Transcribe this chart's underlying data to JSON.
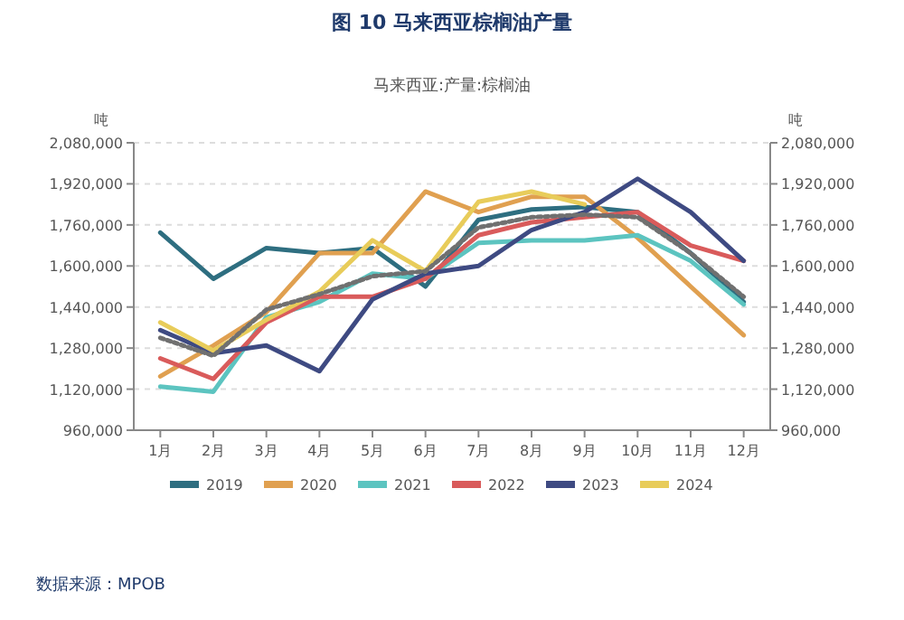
{
  "chart_data": {
    "type": "line",
    "title": "图 10 马来西亚棕榈油产量",
    "subtitle": "马来西亚:产量:棕榈油",
    "ylabel": "吨",
    "y2label": "吨",
    "categories": [
      "1月",
      "2月",
      "3月",
      "4月",
      "5月",
      "6月",
      "7月",
      "8月",
      "9月",
      "10月",
      "11月",
      "12月"
    ],
    "series": [
      {
        "name": "2019",
        "color": "#2e6e80",
        "values": [
          1730000,
          1550000,
          1670000,
          1650000,
          1670000,
          1520000,
          1780000,
          1820000,
          1830000,
          1810000,
          1650000,
          1460000
        ]
      },
      {
        "name": "2020",
        "color": "#e0a050",
        "values": [
          1170000,
          1290000,
          1420000,
          1650000,
          1650000,
          1890000,
          1810000,
          1870000,
          1870000,
          1710000,
          1520000,
          1330000
        ]
      },
      {
        "name": "2021",
        "color": "#5cc4c0",
        "values": [
          1130000,
          1110000,
          1400000,
          1460000,
          1570000,
          1550000,
          1690000,
          1700000,
          1700000,
          1720000,
          1620000,
          1450000
        ]
      },
      {
        "name": "2022",
        "color": "#d95b5b",
        "values": [
          1240000,
          1160000,
          1380000,
          1480000,
          1480000,
          1550000,
          1720000,
          1770000,
          1790000,
          1810000,
          1680000,
          1620000
        ]
      },
      {
        "name": "2023",
        "color": "#3e4a82",
        "values": [
          1350000,
          1260000,
          1290000,
          1190000,
          1470000,
          1570000,
          1600000,
          1740000,
          1810000,
          1940000,
          1810000,
          1620000
        ]
      },
      {
        "name": "2024",
        "color": "#e8cc5a",
        "values": [
          1380000,
          1270000,
          1390000,
          1500000,
          1700000,
          1580000,
          1850000,
          1890000,
          1840000,
          null,
          null,
          null
        ]
      },
      {
        "color": "#707070",
        "line_style": "dotted",
        "values": [
          1320000,
          1250000,
          1430000,
          1490000,
          1560000,
          1580000,
          1750000,
          1790000,
          1800000,
          1790000,
          1650000,
          1480000
        ]
      }
    ],
    "ylim": [
      960000,
      2080000
    ],
    "yticks": [
      {
        "value": 960000,
        "label": "960,000"
      },
      {
        "value": 1120000,
        "label": "1,120,000"
      },
      {
        "value": 1280000,
        "label": "1,280,000"
      },
      {
        "value": 1440000,
        "label": "1,440,000"
      },
      {
        "value": 1600000,
        "label": "1,600,000"
      },
      {
        "value": 1760000,
        "label": "1,760,000"
      },
      {
        "value": 1920000,
        "label": "1,920,000"
      },
      {
        "value": 2080000,
        "label": "2,080,000"
      }
    ],
    "y2lim": [
      960000,
      2080000
    ],
    "y2ticks": [
      {
        "value": 960000,
        "label": "960,000"
      },
      {
        "value": 1120000,
        "label": "1,120,000"
      },
      {
        "value": 1280000,
        "label": "1,280,000"
      },
      {
        "value": 1440000,
        "label": "1,440,000"
      },
      {
        "value": 1600000,
        "label": "1,600,000"
      },
      {
        "value": 1760000,
        "label": "1,760,000"
      },
      {
        "value": 1920000,
        "label": "1,920,000"
      },
      {
        "value": 2080000,
        "label": "2,080,000"
      }
    ],
    "grid": "y",
    "legend": "bottom",
    "annotations": [
      "数据来源：MPOB"
    ]
  }
}
